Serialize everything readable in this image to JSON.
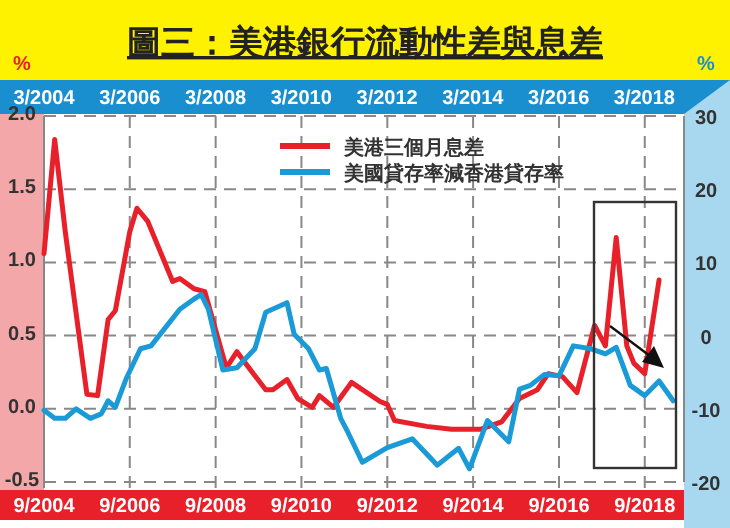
{
  "chart_data": {
    "type": "line",
    "title": "圖三：美港銀行流動性差與息差",
    "ylabel": "%",
    "y2label": "%",
    "xlim": [
      "2004-09",
      "2019-08"
    ],
    "xticks": [
      {
        "value": "2004-09",
        "label": "9/2004"
      },
      {
        "value": "2006-09",
        "label": "9/2006"
      },
      {
        "value": "2008-09",
        "label": "9/2008"
      },
      {
        "value": "2010-09",
        "label": "9/2010"
      },
      {
        "value": "2012-09",
        "label": "9/2012"
      },
      {
        "value": "2014-09",
        "label": "9/2014"
      },
      {
        "value": "2016-09",
        "label": "9/2016"
      },
      {
        "value": "2018-09",
        "label": "9/2018"
      }
    ],
    "x2lim": [
      "2004-03",
      "2019-02"
    ],
    "x2ticks": [
      {
        "value": "2004-03",
        "label": "3/2004"
      },
      {
        "value": "2006-03",
        "label": "3/2006"
      },
      {
        "value": "2008-03",
        "label": "3/2008"
      },
      {
        "value": "2010-03",
        "label": "3/2010"
      },
      {
        "value": "2012-03",
        "label": "3/2012"
      },
      {
        "value": "2014-03",
        "label": "3/2014"
      },
      {
        "value": "2016-03",
        "label": "3/2016"
      },
      {
        "value": "2018-03",
        "label": "3/2018"
      }
    ],
    "ylim": [
      -0.5,
      2.0
    ],
    "yticks": [
      {
        "value": -0.5,
        "label": "-0.5"
      },
      {
        "value": 0,
        "label": "0.0"
      },
      {
        "value": 0.5,
        "label": "0.5"
      },
      {
        "value": 1,
        "label": "1.0"
      },
      {
        "value": 1.5,
        "label": "1.5"
      },
      {
        "value": 2,
        "label": "2.0"
      }
    ],
    "y2lim": [
      -20,
      30
    ],
    "y2ticks": [
      -20,
      -10,
      0,
      10,
      20,
      30
    ],
    "grid": true,
    "legend": "top right",
    "line_style": "solid",
    "series": [
      {
        "name": "美港三個月息差",
        "color": "#e8202a",
        "x": [
          "2004-09",
          "2004-12",
          "2005-03",
          "2005-09",
          "2005-12",
          "2006-03",
          "2006-05",
          "2006-09",
          "2006-11",
          "2007-02",
          "2007-09",
          "2007-11",
          "2008-03",
          "2008-06",
          "2008-12",
          "2009-03",
          "2009-06",
          "2009-11",
          "2010-01",
          "2010-05",
          "2010-08",
          "2010-12",
          "2011-02",
          "2011-06",
          "2011-11",
          "2012-07",
          "2012-09",
          "2012-11",
          "2013-08",
          "2014-03",
          "2014-11",
          "2015-05",
          "2015-10",
          "2016-03",
          "2016-06",
          "2016-10",
          "2017-02",
          "2017-07",
          "2017-10",
          "2018-01",
          "2018-04",
          "2018-06",
          "2018-09",
          "2019-01"
        ],
        "values": [
          1.06,
          1.84,
          1.21,
          0.1,
          0.09,
          0.61,
          0.67,
          1.21,
          1.37,
          1.28,
          0.87,
          0.89,
          0.82,
          0.8,
          0.28,
          0.39,
          0.29,
          0.13,
          0.13,
          0.2,
          0.07,
          0.01,
          0.09,
          0.01,
          0.18,
          0.05,
          0.03,
          -0.08,
          -0.12,
          -0.14,
          -0.14,
          -0.09,
          0.07,
          0.13,
          0.24,
          0.22,
          0.11,
          0.57,
          0.43,
          1.17,
          0.43,
          0.31,
          0.24,
          0.88
        ]
      },
      {
        "name": "美國貸存率減香港貸存率",
        "color": "#1a9ad6",
        "axis": "y2",
        "x": [
          "2004-09",
          "2004-12",
          "2005-03",
          "2005-06",
          "2005-10",
          "2006-01",
          "2006-03",
          "2006-05",
          "2006-08",
          "2006-12",
          "2007-03",
          "2007-11",
          "2008-03",
          "2008-05",
          "2008-07",
          "2008-11",
          "2009-03",
          "2009-08",
          "2009-11",
          "2010-05",
          "2010-07",
          "2010-11",
          "2011-02",
          "2011-04",
          "2011-08",
          "2011-10",
          "2012-02",
          "2012-09",
          "2013-04",
          "2013-11",
          "2014-05",
          "2014-08",
          "2015-01",
          "2015-07",
          "2015-10",
          "2016-01",
          "2016-05",
          "2016-09",
          "2017-01",
          "2017-06",
          "2017-10",
          "2018-01",
          "2018-05",
          "2018-09",
          "2019-01",
          "2019-05"
        ],
        "values": [
          -10.2,
          -11.3,
          -11.3,
          -10,
          -11.3,
          -10.7,
          -8.9,
          -9.8,
          -5.9,
          -1.8,
          -1.4,
          3.6,
          5,
          5.6,
          3.6,
          -4.7,
          -4.4,
          -1.8,
          3.2,
          4.5,
          0.2,
          -1.8,
          -4.7,
          -4.5,
          -11.3,
          -13.2,
          -17.3,
          -15.3,
          -14.1,
          -17.7,
          -15.4,
          -18.2,
          -11.6,
          -14.5,
          -7.3,
          -6.8,
          -5.3,
          -5.5,
          -1.4,
          -1.8,
          -2.5,
          -1.6,
          -6.8,
          -8.2,
          -6.2,
          -8.9
        ]
      }
    ]
  }
}
